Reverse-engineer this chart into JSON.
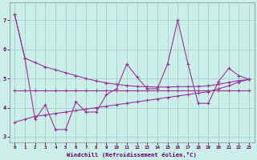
{
  "x": [
    0,
    1,
    2,
    3,
    4,
    5,
    6,
    7,
    8,
    9,
    10,
    11,
    12,
    13,
    14,
    15,
    16,
    17,
    18,
    19,
    20,
    21,
    22,
    23
  ],
  "line_smooth": [
    7.2,
    5.7,
    5.55,
    5.4,
    5.3,
    5.2,
    5.1,
    5.0,
    4.92,
    4.85,
    4.8,
    4.76,
    4.73,
    4.72,
    4.71,
    4.71,
    4.72,
    4.72,
    4.73,
    4.75,
    4.8,
    4.87,
    4.93,
    4.97
  ],
  "line_volatile": [
    7.2,
    5.7,
    3.6,
    4.1,
    3.25,
    3.25,
    4.2,
    3.85,
    3.85,
    4.45,
    4.65,
    5.5,
    5.05,
    4.65,
    4.65,
    5.5,
    7.0,
    5.5,
    4.15,
    4.15,
    4.9,
    5.35,
    5.1,
    4.97
  ],
  "line_flat": [
    4.6,
    4.6,
    4.6,
    4.6,
    4.6,
    4.6,
    4.6,
    4.6,
    4.6,
    4.6,
    4.6,
    4.6,
    4.6,
    4.6,
    4.6,
    4.6,
    4.6,
    4.6,
    4.6,
    4.6,
    4.6,
    4.6,
    4.6,
    4.6
  ],
  "line_rising": [
    3.5,
    3.6,
    3.7,
    3.75,
    3.8,
    3.85,
    3.9,
    3.95,
    4.0,
    4.05,
    4.1,
    4.15,
    4.2,
    4.25,
    4.3,
    4.35,
    4.4,
    4.45,
    4.5,
    4.55,
    4.65,
    4.75,
    4.88,
    4.97
  ],
  "bg_color": "#cceee8",
  "line_color": "#993399",
  "grid_color": "#99cccc",
  "xlabel": "Windchill (Refroidissement éolien,°C)",
  "ylim": [
    2.8,
    7.6
  ],
  "xlim": [
    -0.5,
    23.5
  ],
  "yticks": [
    3,
    4,
    5,
    6,
    7
  ],
  "xticks": [
    0,
    1,
    2,
    3,
    4,
    5,
    6,
    7,
    8,
    9,
    10,
    11,
    12,
    13,
    14,
    15,
    16,
    17,
    18,
    19,
    20,
    21,
    22,
    23
  ]
}
